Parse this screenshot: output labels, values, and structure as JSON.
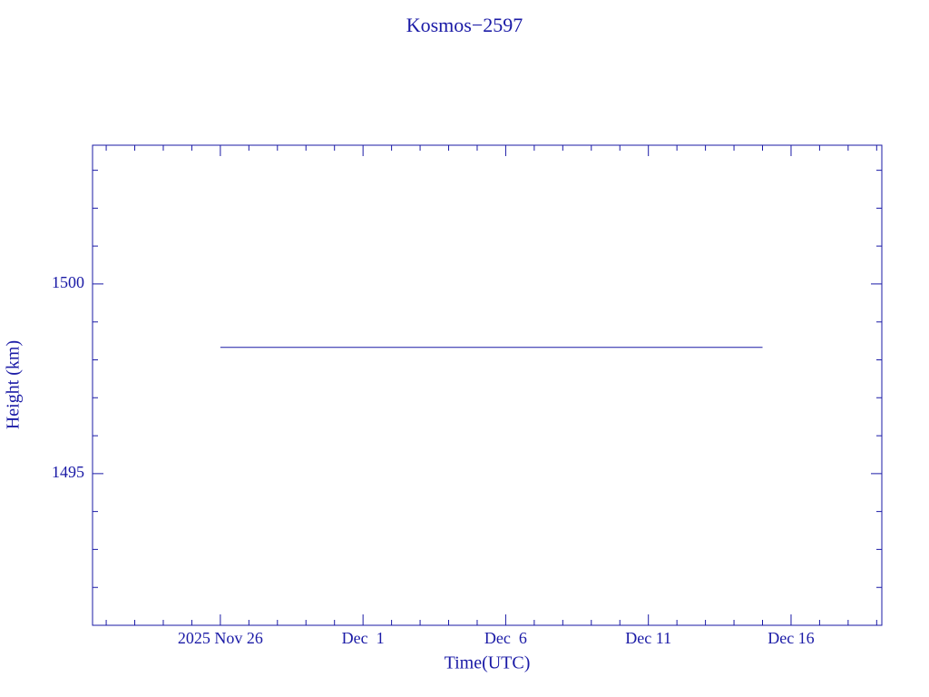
{
  "chart_data": {
    "type": "line",
    "title": "Kosmos−2597",
    "x_label": "Time(UTC)",
    "y_label": "Height (km)",
    "x": [
      "2025-11-26",
      "2025-12-15"
    ],
    "series": [
      {
        "color": "#1a1aa6",
        "values": [
          1498.33,
          1498.33
        ]
      }
    ],
    "xlim": [
      "2025-11-21T12:30:00Z",
      "2025-12-19T04:20:00Z"
    ],
    "xticks": [
      {
        "value": "2025-11-26",
        "label": "2025 Nov 26"
      },
      {
        "value": "2025-12-01",
        "label": "Dec  1"
      },
      {
        "value": "2025-12-06",
        "label": "Dec  6"
      },
      {
        "value": "2025-12-11",
        "label": "Dec 11"
      },
      {
        "value": "2025-12-16",
        "label": "Dec 16"
      }
    ],
    "xminor_ticks": [
      "2025-11-22",
      "2025-11-23",
      "2025-11-24",
      "2025-11-25",
      "2025-11-27",
      "2025-11-28",
      "2025-11-29",
      "2025-11-30",
      "2025-12-02",
      "2025-12-03",
      "2025-12-04",
      "2025-12-05",
      "2025-12-07",
      "2025-12-08",
      "2025-12-09",
      "2025-12-10",
      "2025-12-12",
      "2025-12-13",
      "2025-12-14",
      "2025-12-15",
      "2025-12-17",
      "2025-12-18",
      "2025-12-19"
    ],
    "ylim": [
      1491,
      1503.66
    ],
    "yticks": [
      1495,
      1500
    ],
    "yminor_ticks": [
      1492,
      1493,
      1494,
      1496,
      1497,
      1498,
      1499,
      1501,
      1502,
      1503
    ],
    "grid": false
  }
}
